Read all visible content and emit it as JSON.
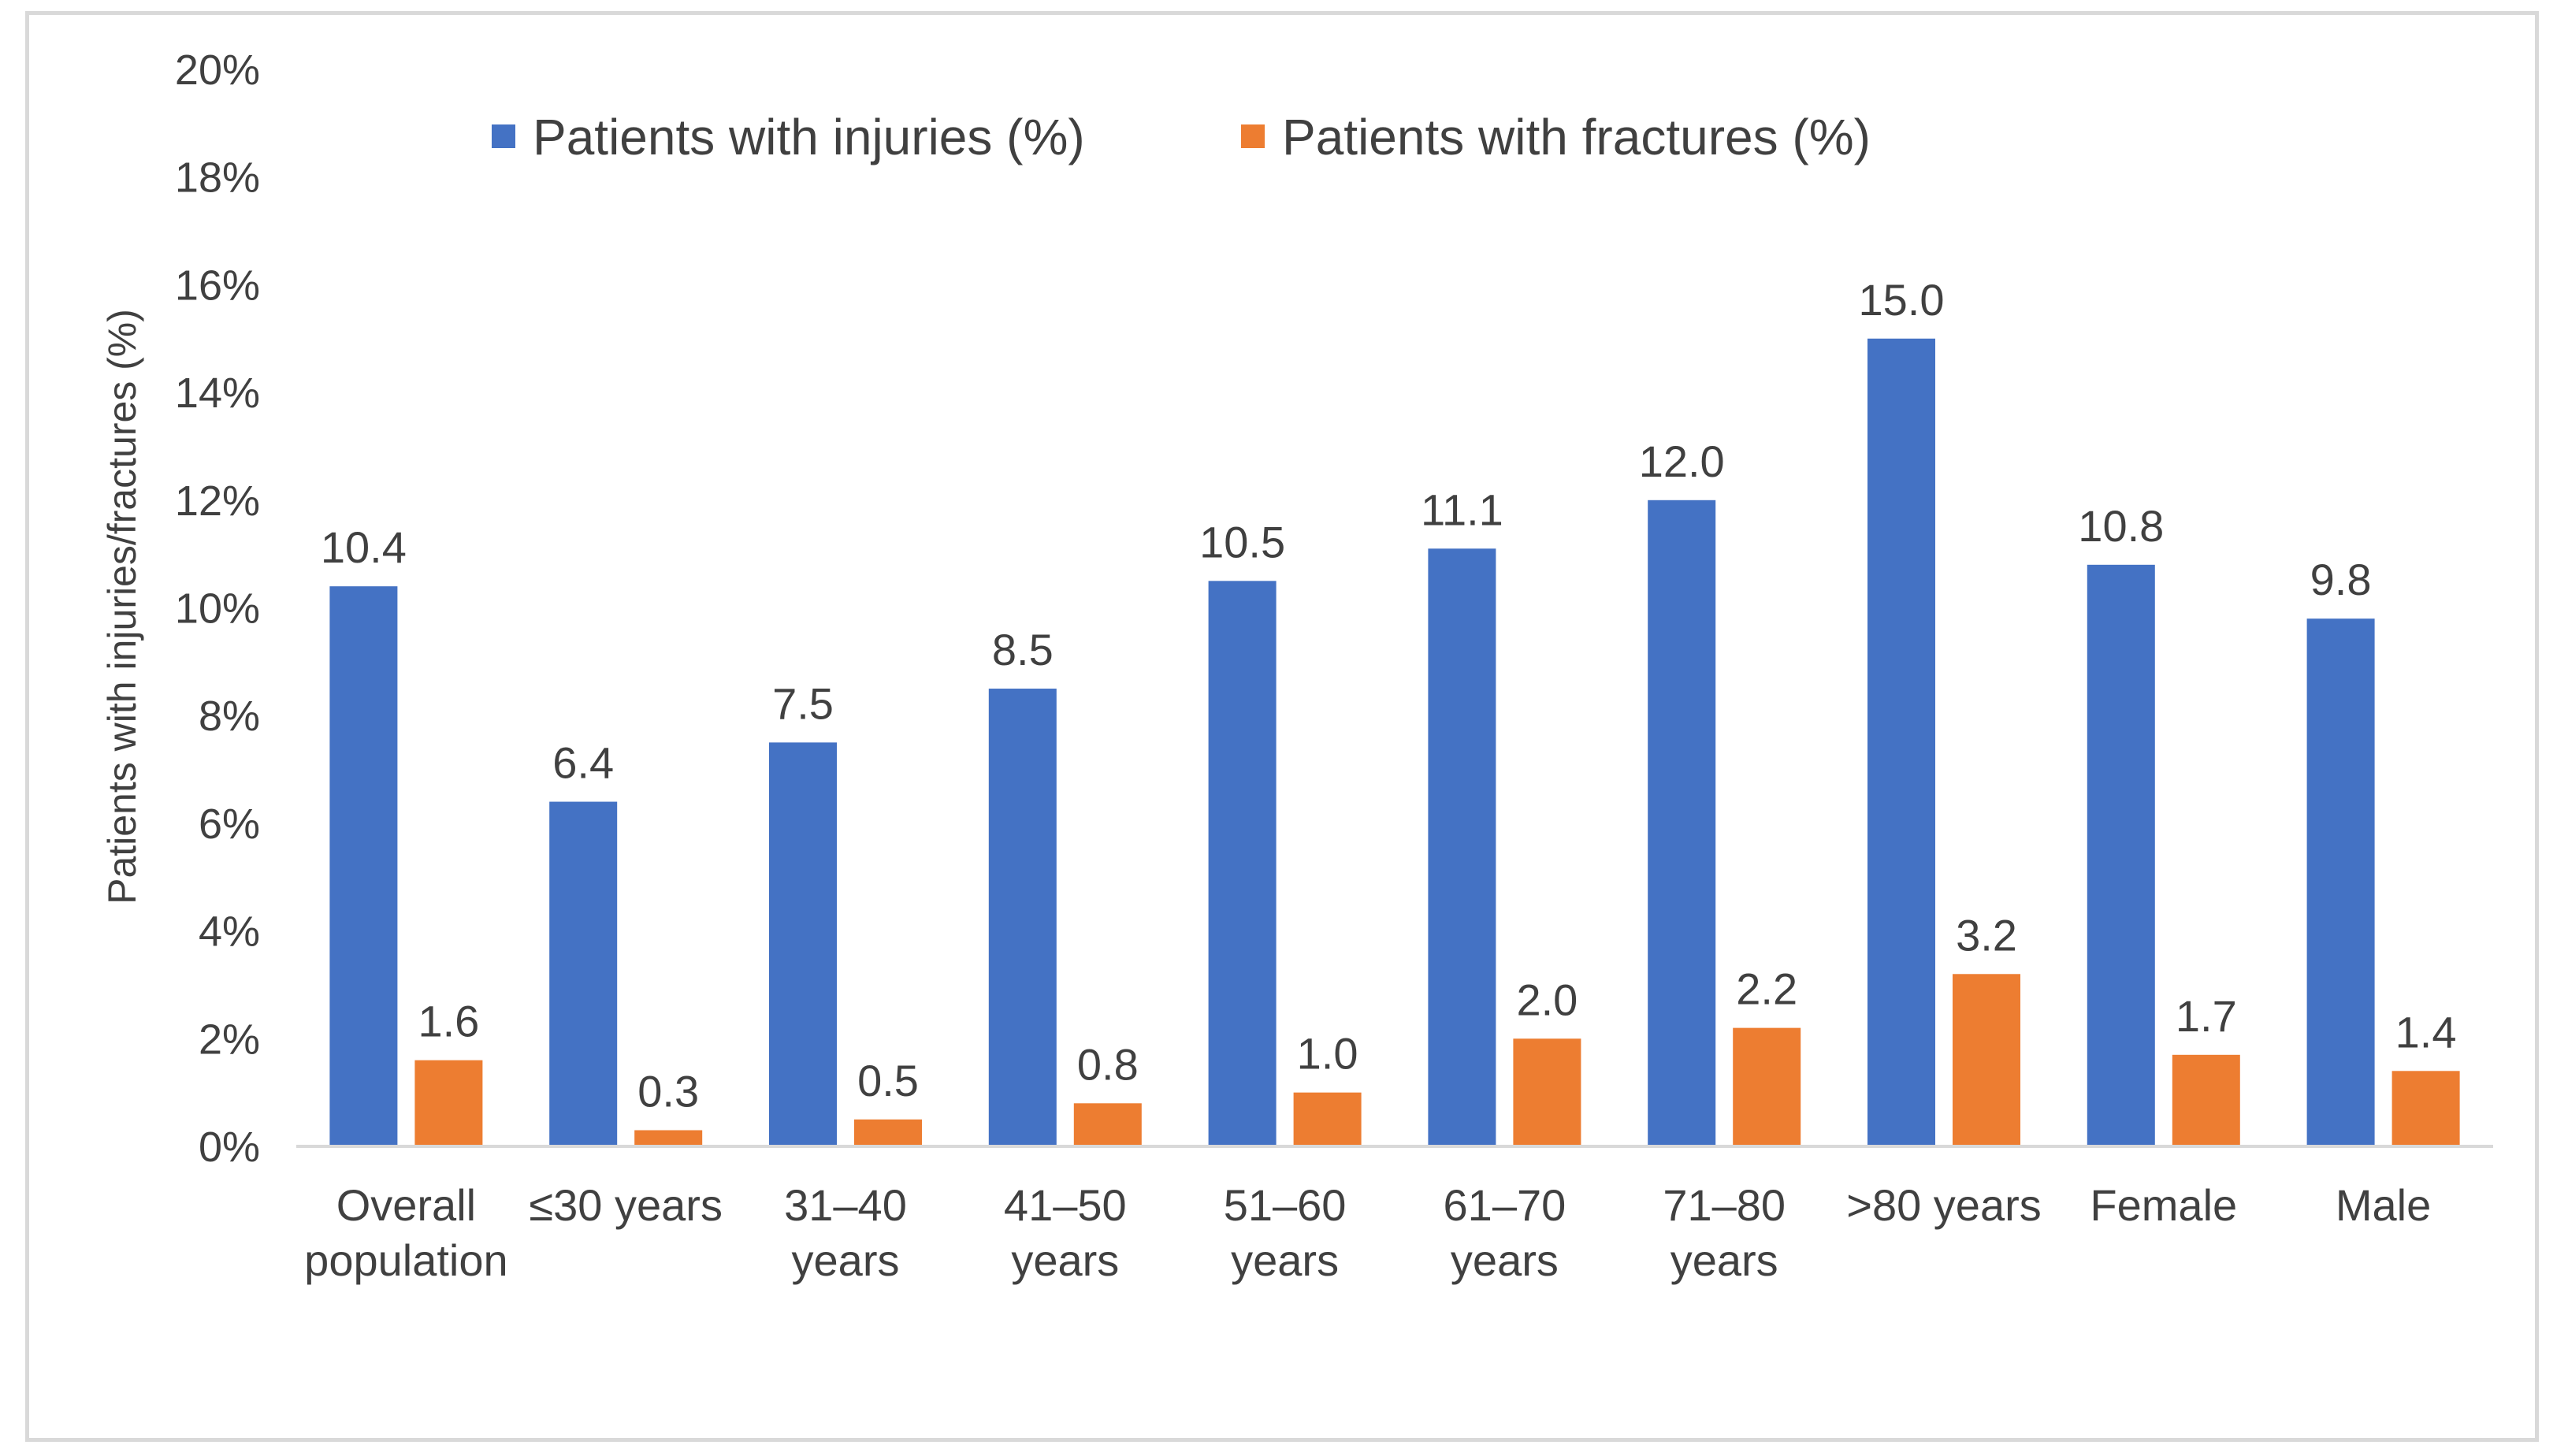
{
  "chart_data": {
    "type": "bar",
    "title": "",
    "xlabel": "",
    "ylabel": "Patients with injuries/fractures (%)",
    "ylim": [
      0,
      20
    ],
    "yticks": [
      "0%",
      "2%",
      "4%",
      "6%",
      "8%",
      "10%",
      "12%",
      "14%",
      "16%",
      "18%",
      "20%"
    ],
    "ytick_values": [
      0,
      2,
      4,
      6,
      8,
      10,
      12,
      14,
      16,
      18,
      20
    ],
    "grid": false,
    "legend_position": "top",
    "categories": [
      [
        "Overall",
        "population"
      ],
      [
        "≤30 years"
      ],
      [
        "31–40",
        "years"
      ],
      [
        "41–50",
        "years"
      ],
      [
        "51–60",
        "years"
      ],
      [
        "61–70",
        "years"
      ],
      [
        "71–80",
        "years"
      ],
      [
        ">80 years"
      ],
      [
        "Female"
      ],
      [
        "Male"
      ]
    ],
    "series": [
      {
        "name": "Patients with injuries (%)",
        "color": "#4472C4",
        "values": [
          10.4,
          6.4,
          7.5,
          8.5,
          10.5,
          11.1,
          12.0,
          15.0,
          10.8,
          9.8
        ],
        "labels": [
          "10.4",
          "6.4",
          "7.5",
          "8.5",
          "10.5",
          "11.1",
          "12.0",
          "15.0",
          "10.8",
          "9.8"
        ]
      },
      {
        "name": "Patients with fractures (%)",
        "color": "#ED7D31",
        "values": [
          1.6,
          0.3,
          0.5,
          0.8,
          1.0,
          2.0,
          2.2,
          3.2,
          1.7,
          1.4
        ],
        "labels": [
          "1.6",
          "0.3",
          "0.5",
          "0.8",
          "1.0",
          "2.0",
          "2.2",
          "3.2",
          "1.7",
          "1.4"
        ]
      }
    ]
  }
}
